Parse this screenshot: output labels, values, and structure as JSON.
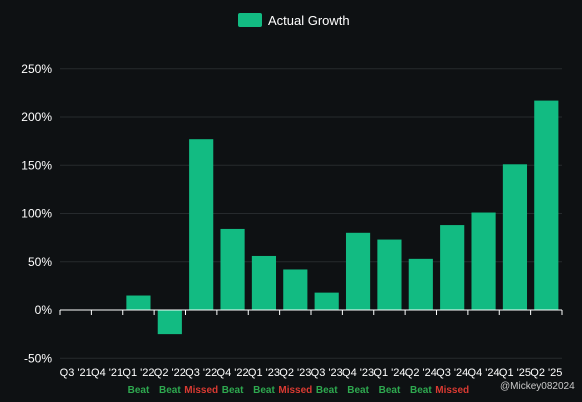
{
  "chart_data": {
    "type": "bar",
    "legend": {
      "entries": [
        "Actual Growth"
      ],
      "placement": "top-center"
    },
    "colors": {
      "bar": "#12bb82",
      "beat": "#2ea84f",
      "missed": "#d93a32",
      "grid": "#262a2d",
      "background": "#0e1113"
    },
    "categories": [
      "Q3 '21",
      "Q4 '21",
      "Q1 '22",
      "Q2 '22",
      "Q3 '22",
      "Q4 '22",
      "Q1 '23",
      "Q2 '23",
      "Q3 '23",
      "Q4 '23",
      "Q1 '24",
      "Q2 '24",
      "Q3 '24",
      "Q4 '24",
      "Q1 '25",
      "Q2 '25"
    ],
    "series": [
      {
        "name": "Actual Growth",
        "values": [
          0,
          0,
          15,
          -25,
          177,
          84,
          56,
          42,
          18,
          80,
          73,
          53,
          88,
          101,
          151,
          217
        ]
      }
    ],
    "outcomes": [
      "",
      "",
      "Beat",
      "Beat",
      "Missed",
      "Beat",
      "Beat",
      "Missed",
      "Beat",
      "Beat",
      "Beat",
      "Beat",
      "Missed",
      "",
      "",
      ""
    ],
    "ylim": [
      -50,
      250
    ],
    "yticks": [
      -50,
      0,
      50,
      100,
      150,
      200,
      250
    ],
    "ytick_suffix": "%",
    "grid": true
  },
  "watermark": "@Mickey082024"
}
